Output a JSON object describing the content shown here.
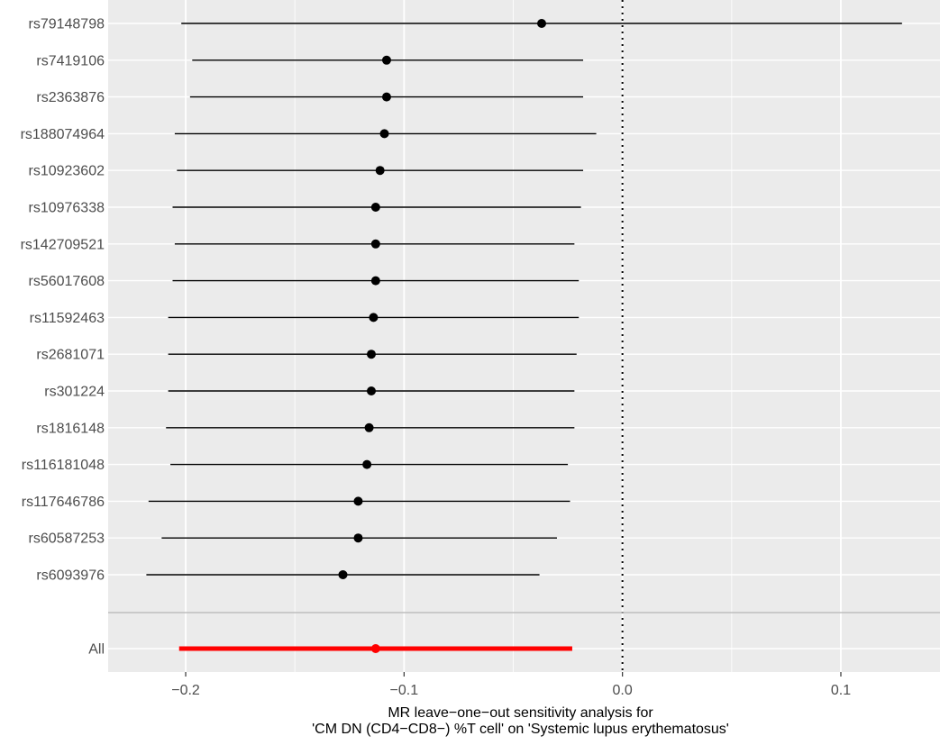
{
  "chart_data": {
    "type": "scatter",
    "subtype": "forest-plot",
    "title": "",
    "xlabel_lines": [
      "MR leave−one−out sensitivity analysis for",
      "'CM DN (CD4−CD8−) %T cell' on 'Systemic lupus erythematosus'"
    ],
    "ylabel": "",
    "xlim": [
      -0.2355,
      0.1454
    ],
    "x_ticks": [
      {
        "value": -0.2,
        "label": "−0.2"
      },
      {
        "value": -0.1,
        "label": "−0.1"
      },
      {
        "value": 0.0,
        "label": "0.0"
      },
      {
        "value": 0.1,
        "label": "0.1"
      }
    ],
    "reference_line": {
      "x": 0,
      "style": "dotted"
    },
    "grid": true,
    "background": "#ebebeb",
    "colors": {
      "snp": "#000000",
      "overall": "#ff0000",
      "grid": "#ffffff",
      "separator": "#bebebe"
    },
    "rows": [
      {
        "label": "rs79148798",
        "estimate": -0.037,
        "lower": -0.202,
        "upper": 0.128
      },
      {
        "label": "rs7419106",
        "estimate": -0.108,
        "lower": -0.197,
        "upper": -0.018
      },
      {
        "label": "rs2363876",
        "estimate": -0.108,
        "lower": -0.198,
        "upper": -0.018
      },
      {
        "label": "rs188074964",
        "estimate": -0.109,
        "lower": -0.205,
        "upper": -0.012
      },
      {
        "label": "rs10923602",
        "estimate": -0.111,
        "lower": -0.204,
        "upper": -0.018
      },
      {
        "label": "rs10976338",
        "estimate": -0.113,
        "lower": -0.206,
        "upper": -0.019
      },
      {
        "label": "rs142709521",
        "estimate": -0.113,
        "lower": -0.205,
        "upper": -0.022
      },
      {
        "label": "rs56017608",
        "estimate": -0.113,
        "lower": -0.206,
        "upper": -0.02
      },
      {
        "label": "rs11592463",
        "estimate": -0.114,
        "lower": -0.208,
        "upper": -0.02
      },
      {
        "label": "rs2681071",
        "estimate": -0.115,
        "lower": -0.208,
        "upper": -0.021
      },
      {
        "label": "rs301224",
        "estimate": -0.115,
        "lower": -0.208,
        "upper": -0.022
      },
      {
        "label": "rs1816148",
        "estimate": -0.116,
        "lower": -0.209,
        "upper": -0.022
      },
      {
        "label": "rs116181048",
        "estimate": -0.117,
        "lower": -0.207,
        "upper": -0.025
      },
      {
        "label": "rs117646786",
        "estimate": -0.121,
        "lower": -0.217,
        "upper": -0.024
      },
      {
        "label": "rs60587253",
        "estimate": -0.121,
        "lower": -0.211,
        "upper": -0.03
      },
      {
        "label": "rs6093976",
        "estimate": -0.128,
        "lower": -0.218,
        "upper": -0.038
      }
    ],
    "overall": {
      "label": "All",
      "estimate": -0.113,
      "lower": -0.203,
      "upper": -0.023
    }
  }
}
